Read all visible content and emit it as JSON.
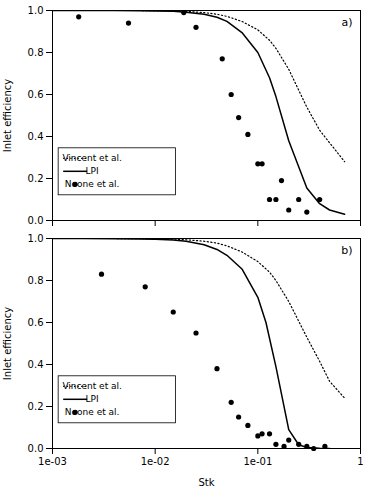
{
  "chart_data": [
    {
      "type": "line",
      "annotations": [
        "a)"
      ],
      "ylabel": "Inlet efficiency",
      "log": "x",
      "xlim": [
        0.001,
        1
      ],
      "xticks": [
        {
          "value": 0.001,
          "label": "1e-03"
        },
        {
          "value": 0.01,
          "label": "1e-02"
        },
        {
          "value": 0.1,
          "label": "1e-01"
        },
        1
      ],
      "ylim": [
        0,
        1
      ],
      "yticks": [
        {
          "value": 0,
          "label": "0.0"
        },
        0.2,
        0.4,
        0.6,
        0.8,
        {
          "value": 1,
          "label": "1.0"
        }
      ],
      "tick_labels": "y",
      "grid": false,
      "legend": "lower left",
      "series": [
        {
          "name": "Vincent et al.",
          "type": "line",
          "line_style": "dotted",
          "color": "#000000",
          "x": [
            0.001,
            0.002,
            0.004,
            0.007,
            0.01,
            0.015,
            0.02,
            0.03,
            0.04,
            0.05,
            0.07,
            0.1,
            0.13,
            0.15,
            0.2,
            0.3,
            0.4,
            0.5,
            0.7
          ],
          "values": [
            1.0,
            1.0,
            1.0,
            1.0,
            0.999,
            0.998,
            0.996,
            0.99,
            0.982,
            0.972,
            0.948,
            0.908,
            0.858,
            0.82,
            0.72,
            0.54,
            0.43,
            0.37,
            0.28
          ]
        },
        {
          "name": "LPI",
          "type": "line",
          "line_style": "solid",
          "color": "#000000",
          "x": [
            0.001,
            0.002,
            0.004,
            0.007,
            0.01,
            0.015,
            0.02,
            0.03,
            0.04,
            0.05,
            0.07,
            0.1,
            0.13,
            0.15,
            0.2,
            0.3,
            0.4,
            0.5,
            0.7
          ],
          "values": [
            1.0,
            1.0,
            1.0,
            0.999,
            0.998,
            0.996,
            0.992,
            0.982,
            0.968,
            0.948,
            0.895,
            0.8,
            0.68,
            0.59,
            0.38,
            0.155,
            0.08,
            0.05,
            0.03
          ]
        },
        {
          "name": "Noone et al.",
          "type": "scatter",
          "marker": "circle",
          "color": "#000000",
          "x": [
            0.0018,
            0.0055,
            0.019,
            0.025,
            0.045,
            0.055,
            0.065,
            0.08,
            0.1,
            0.11,
            0.13,
            0.15,
            0.17,
            0.2,
            0.25,
            0.3,
            0.4
          ],
          "values": [
            0.97,
            0.94,
            0.99,
            0.92,
            0.77,
            0.6,
            0.49,
            0.41,
            0.27,
            0.27,
            0.1,
            0.1,
            0.19,
            0.05,
            0.1,
            0.04,
            0.1
          ]
        }
      ]
    },
    {
      "type": "line",
      "annotations": [
        "b)"
      ],
      "xlabel": "Stk",
      "ylabel": "Inlet efficiency",
      "log": "x",
      "xlim": [
        0.001,
        1
      ],
      "xticks": [
        {
          "value": 0.001,
          "label": "1e-03"
        },
        {
          "value": 0.01,
          "label": "1e-02"
        },
        {
          "value": 0.1,
          "label": "1e-01"
        },
        1
      ],
      "ylim": [
        0,
        1
      ],
      "yticks": [
        {
          "value": 0,
          "label": "0.0"
        },
        0.2,
        0.4,
        0.6,
        0.8,
        {
          "value": 1,
          "label": "1.0"
        }
      ],
      "grid": false,
      "legend": "lower left",
      "series": [
        {
          "name": "Vincent et al.",
          "type": "line",
          "line_style": "dotted",
          "color": "#000000",
          "x": [
            0.001,
            0.002,
            0.004,
            0.007,
            0.01,
            0.015,
            0.02,
            0.03,
            0.04,
            0.05,
            0.07,
            0.1,
            0.13,
            0.15,
            0.2,
            0.3,
            0.4,
            0.5,
            0.7
          ],
          "values": [
            1.0,
            1.0,
            1.0,
            0.999,
            0.998,
            0.997,
            0.994,
            0.987,
            0.978,
            0.965,
            0.936,
            0.89,
            0.84,
            0.8,
            0.7,
            0.53,
            0.415,
            0.32,
            0.24
          ]
        },
        {
          "name": "LPI",
          "type": "line",
          "line_style": "solid",
          "color": "#000000",
          "x": [
            0.001,
            0.002,
            0.004,
            0.007,
            0.01,
            0.015,
            0.02,
            0.03,
            0.04,
            0.05,
            0.07,
            0.1,
            0.12,
            0.15,
            0.2,
            0.25,
            0.3,
            0.4,
            0.5
          ],
          "values": [
            1.0,
            1.0,
            0.999,
            0.998,
            0.997,
            0.993,
            0.987,
            0.97,
            0.948,
            0.92,
            0.855,
            0.72,
            0.6,
            0.39,
            0.09,
            0.018,
            0.005,
            0.001,
            0.0
          ]
        },
        {
          "name": "Noone et al.",
          "type": "scatter",
          "marker": "circle",
          "color": "#000000",
          "x": [
            0.003,
            0.008,
            0.015,
            0.025,
            0.04,
            0.055,
            0.065,
            0.08,
            0.1,
            0.11,
            0.13,
            0.15,
            0.18,
            0.2,
            0.25,
            0.3,
            0.35,
            0.45
          ],
          "values": [
            0.83,
            0.77,
            0.65,
            0.55,
            0.38,
            0.22,
            0.15,
            0.11,
            0.06,
            0.07,
            0.07,
            0.02,
            0.01,
            0.04,
            0.02,
            0.01,
            0.0,
            0.01
          ]
        }
      ]
    }
  ]
}
